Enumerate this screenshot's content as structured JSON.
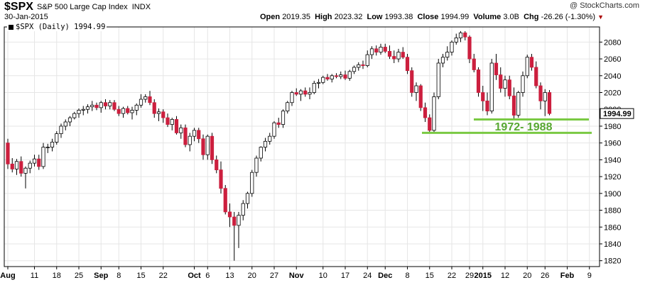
{
  "header": {
    "symbol": "$SPX",
    "name": "S&P 500 Large Cap Index",
    "exchange": "INDX",
    "date": "30-Jan-2015",
    "copyright": "@ StockCharts.com",
    "open_label": "Open",
    "open": "2019.35",
    "high_label": "High",
    "high": "2023.32",
    "low_label": "Low",
    "low": "1993.38",
    "close_label": "Close",
    "close": "1994.99",
    "volume_label": "Volume",
    "volume": "3.0B",
    "chg_label": "Chg",
    "chg": "-26.26 (-1.30%)"
  },
  "legend": {
    "text": "$SPX (Daily) 1994.99"
  },
  "colors": {
    "up": "#ffffff",
    "down": "#cc1f3e",
    "outline": "#000000",
    "support": "#7ac943",
    "annotation": "#58a832",
    "grid": "#e6e6e6"
  },
  "chart_data": {
    "type": "candlestick",
    "title": "$SPX (Daily) 1994.99",
    "ylim": [
      1813,
      2098
    ],
    "yticks": [
      1820,
      1840,
      1860,
      1880,
      1900,
      1920,
      1940,
      1960,
      1980,
      2000,
      2020,
      2040,
      2060,
      2080
    ],
    "last_price_label": "1994.99",
    "grid": "on",
    "x_ticks": [
      {
        "label": "Aug",
        "i": 0,
        "bold": true
      },
      {
        "label": "11",
        "i": 6
      },
      {
        "label": "18",
        "i": 11
      },
      {
        "label": "25",
        "i": 16
      },
      {
        "label": "Sep",
        "i": 21,
        "bold": true
      },
      {
        "label": "8",
        "i": 25
      },
      {
        "label": "15",
        "i": 30
      },
      {
        "label": "22",
        "i": 35
      },
      {
        "label": "Oct",
        "i": 42,
        "bold": true
      },
      {
        "label": "6",
        "i": 45
      },
      {
        "label": "13",
        "i": 50
      },
      {
        "label": "20",
        "i": 55
      },
      {
        "label": "27",
        "i": 60
      },
      {
        "label": "Nov",
        "i": 65,
        "bold": true
      },
      {
        "label": "10",
        "i": 71
      },
      {
        "label": "17",
        "i": 76
      },
      {
        "label": "24",
        "i": 81
      },
      {
        "label": "Dec",
        "i": 85,
        "bold": true
      },
      {
        "label": "8",
        "i": 90
      },
      {
        "label": "15",
        "i": 95
      },
      {
        "label": "22",
        "i": 100
      },
      {
        "label": "29",
        "i": 104
      },
      {
        "label": "2015",
        "i": 107,
        "bold": true
      },
      {
        "label": "12",
        "i": 112
      },
      {
        "label": "20",
        "i": 117
      },
      {
        "label": "26",
        "i": 121
      },
      {
        "label": "Feb",
        "i": 126,
        "bold": true
      },
      {
        "label": "9",
        "i": 131
      }
    ],
    "annotation": {
      "text": "1972- 1988",
      "levels": [
        1972,
        1988
      ]
    },
    "ohlc": [
      [
        1960,
        1965,
        1929,
        1935
      ],
      [
        1935,
        1942,
        1925,
        1929
      ],
      [
        1929,
        1941,
        1922,
        1938
      ],
      [
        1938,
        1944,
        1920,
        1924
      ],
      [
        1924,
        1932,
        1906,
        1930
      ],
      [
        1930,
        1939,
        1924,
        1936
      ],
      [
        1936,
        1946,
        1932,
        1941
      ],
      [
        1941,
        1946,
        1928,
        1932
      ],
      [
        1932,
        1960,
        1929,
        1955
      ],
      [
        1955,
        1959,
        1948,
        1955
      ],
      [
        1955,
        1965,
        1950,
        1961
      ],
      [
        1961,
        1974,
        1958,
        1971
      ],
      [
        1971,
        1983,
        1966,
        1980
      ],
      [
        1980,
        1988,
        1975,
        1985
      ],
      [
        1985,
        1992,
        1980,
        1990
      ],
      [
        1990,
        1997,
        1988,
        1995
      ],
      [
        1995,
        2001,
        1990,
        1999
      ],
      [
        1999,
        2004,
        1993,
        2000
      ],
      [
        2000,
        2006,
        1995,
        2003
      ],
      [
        2003,
        2010,
        1998,
        2005
      ],
      [
        2005,
        2008,
        1999,
        2002
      ],
      [
        2002,
        2010,
        1996,
        2008
      ],
      [
        2008,
        2012,
        2000,
        2004
      ],
      [
        2004,
        2011,
        2000,
        2008
      ],
      [
        2008,
        2011,
        1998,
        2000
      ],
      [
        2000,
        2004,
        1992,
        1995
      ],
      [
        1995,
        2003,
        1990,
        2001
      ],
      [
        2001,
        2004,
        1994,
        1996
      ],
      [
        1996,
        2003,
        1988,
        1999
      ],
      [
        1999,
        2007,
        1993,
        2005
      ],
      [
        2005,
        2018,
        2002,
        2012
      ],
      [
        2012,
        2018,
        2008,
        2015
      ],
      [
        2015,
        2022,
        2005,
        2008
      ],
      [
        2008,
        2012,
        1990,
        1995
      ],
      [
        1995,
        2001,
        1986,
        1997
      ],
      [
        1997,
        2000,
        1984,
        1990
      ],
      [
        1990,
        1995,
        1979,
        1982
      ],
      [
        1982,
        1990,
        1975,
        1988
      ],
      [
        1988,
        1992,
        1970,
        1972
      ],
      [
        1972,
        1982,
        1965,
        1978
      ],
      [
        1978,
        1982,
        1955,
        1958
      ],
      [
        1958,
        1972,
        1950,
        1968
      ],
      [
        1968,
        1978,
        1962,
        1975
      ],
      [
        1975,
        1978,
        1960,
        1965
      ],
      [
        1965,
        1970,
        1940,
        1946
      ],
      [
        1946,
        1970,
        1940,
        1968
      ],
      [
        1968,
        1972,
        1935,
        1940
      ],
      [
        1940,
        1945,
        1924,
        1928
      ],
      [
        1928,
        1938,
        1900,
        1906
      ],
      [
        1906,
        1910,
        1875,
        1878
      ],
      [
        1878,
        1888,
        1860,
        1872
      ],
      [
        1872,
        1878,
        1820,
        1862
      ],
      [
        1862,
        1878,
        1835,
        1874
      ],
      [
        1874,
        1892,
        1868,
        1888
      ],
      [
        1888,
        1902,
        1882,
        1900
      ],
      [
        1900,
        1928,
        1896,
        1925
      ],
      [
        1925,
        1945,
        1920,
        1942
      ],
      [
        1942,
        1956,
        1938,
        1955
      ],
      [
        1955,
        1966,
        1950,
        1962
      ],
      [
        1962,
        1972,
        1958,
        1968
      ],
      [
        1968,
        1986,
        1965,
        1984
      ],
      [
        1984,
        1990,
        1978,
        1982
      ],
      [
        1982,
        2000,
        1978,
        1998
      ],
      [
        1998,
        2010,
        1995,
        2008
      ],
      [
        2008,
        2022,
        2004,
        2020
      ],
      [
        2020,
        2025,
        2016,
        2018
      ],
      [
        2018,
        2024,
        2010,
        2022
      ],
      [
        2022,
        2026,
        2015,
        2018
      ],
      [
        2018,
        2026,
        2012,
        2020
      ],
      [
        2020,
        2034,
        2018,
        2031
      ],
      [
        2031,
        2036,
        2025,
        2032
      ],
      [
        2032,
        2040,
        2030,
        2038
      ],
      [
        2038,
        2042,
        2034,
        2036
      ],
      [
        2036,
        2042,
        2032,
        2040
      ],
      [
        2040,
        2043,
        2037,
        2039
      ],
      [
        2039,
        2045,
        2036,
        2041
      ],
      [
        2041,
        2046,
        2035,
        2037
      ],
      [
        2037,
        2047,
        2034,
        2045
      ],
      [
        2045,
        2052,
        2042,
        2050
      ],
      [
        2050,
        2056,
        2046,
        2053
      ],
      [
        2053,
        2058,
        2048,
        2052
      ],
      [
        2052,
        2070,
        2050,
        2065
      ],
      [
        2065,
        2075,
        2060,
        2072
      ],
      [
        2072,
        2076,
        2064,
        2068
      ],
      [
        2068,
        2078,
        2065,
        2074
      ],
      [
        2074,
        2078,
        2067,
        2069
      ],
      [
        2069,
        2076,
        2060,
        2063
      ],
      [
        2063,
        2070,
        2055,
        2060
      ],
      [
        2060,
        2072,
        2056,
        2068
      ],
      [
        2068,
        2074,
        2060,
        2062
      ],
      [
        2062,
        2066,
        2042,
        2046
      ],
      [
        2046,
        2050,
        2015,
        2020
      ],
      [
        2020,
        2032,
        2010,
        2028
      ],
      [
        2028,
        2030,
        1998,
        2002
      ],
      [
        2002,
        2008,
        1985,
        1990
      ],
      [
        1990,
        1994,
        1972,
        1975
      ],
      [
        1975,
        2020,
        1973,
        2015
      ],
      [
        2015,
        2060,
        2012,
        2055
      ],
      [
        2055,
        2066,
        2050,
        2062
      ],
      [
        2062,
        2075,
        2058,
        2068
      ],
      [
        2068,
        2082,
        2064,
        2080
      ],
      [
        2080,
        2090,
        2077,
        2085
      ],
      [
        2085,
        2093,
        2080,
        2091
      ],
      [
        2091,
        2093,
        2082,
        2086
      ],
      [
        2086,
        2088,
        2055,
        2060
      ],
      [
        2060,
        2066,
        2044,
        2047
      ],
      [
        2047,
        2050,
        2015,
        2020
      ],
      [
        2020,
        2028,
        1998,
        2010
      ],
      [
        2010,
        2020,
        1993,
        1998
      ],
      [
        1998,
        2060,
        1995,
        2055
      ],
      [
        2055,
        2066,
        2035,
        2041
      ],
      [
        2041,
        2050,
        2020,
        2025
      ],
      [
        2025,
        2040,
        2015,
        2035
      ],
      [
        2035,
        2040,
        2012,
        2016
      ],
      [
        2016,
        2026,
        1988,
        1993
      ],
      [
        1993,
        2022,
        1990,
        2020
      ],
      [
        2020,
        2045,
        2015,
        2040
      ],
      [
        2040,
        2065,
        2037,
        2062
      ],
      [
        2062,
        2066,
        2046,
        2050
      ],
      [
        2050,
        2057,
        2025,
        2028
      ],
      [
        2028,
        2032,
        2000,
        2010
      ],
      [
        2010,
        2024,
        1992,
        2020
      ],
      [
        2020,
        2023,
        1993,
        1995
      ]
    ]
  }
}
